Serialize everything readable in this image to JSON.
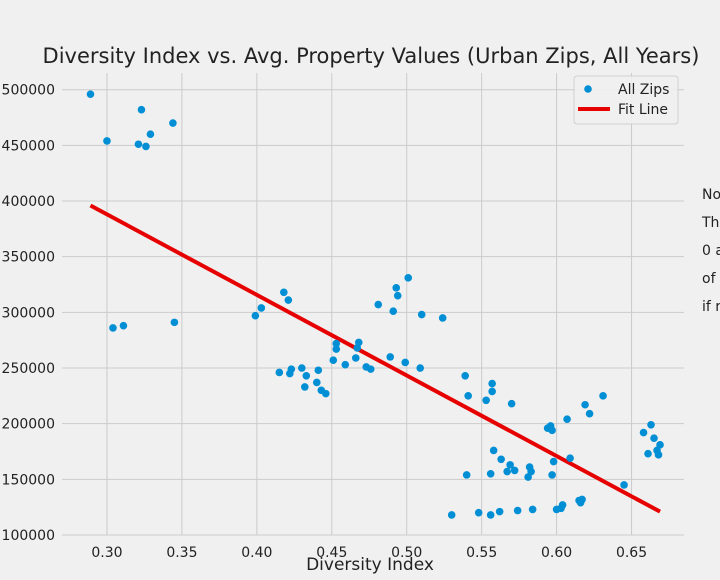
{
  "chart_data": {
    "type": "scatter",
    "title": "Diversity Index vs. Avg. Property Values (Urban Zips, All Years)",
    "xlabel": "Diversity Index",
    "ylabel": "",
    "xlim": [
      0.27,
      0.685
    ],
    "ylim": [
      100000,
      515000
    ],
    "xticks": [
      0.3,
      0.35,
      0.4,
      0.45,
      0.5,
      0.55,
      0.6,
      0.65
    ],
    "xtick_labels": [
      "0.30",
      "0.35",
      "0.40",
      "0.45",
      "0.50",
      "0.55",
      "0.60",
      "0.65"
    ],
    "yticks": [
      100000,
      150000,
      200000,
      250000,
      300000,
      350000,
      400000,
      450000,
      500000
    ],
    "ytick_labels": [
      "100000",
      "150000",
      "200000",
      "250000",
      "300000",
      "350000",
      "400000",
      "450000",
      "500000"
    ],
    "grid": true,
    "legend": {
      "position": "top-right",
      "entries": [
        "All Zips",
        "Fit Line"
      ]
    },
    "series": [
      {
        "name": "All Zips",
        "kind": "scatter",
        "color": "#008fd5",
        "points": [
          [
            0.289,
            496000
          ],
          [
            0.3,
            454000
          ],
          [
            0.304,
            286000
          ],
          [
            0.311,
            288000
          ],
          [
            0.321,
            451000
          ],
          [
            0.323,
            482000
          ],
          [
            0.326,
            449000
          ],
          [
            0.329,
            460000
          ],
          [
            0.344,
            470000
          ],
          [
            0.345,
            291000
          ],
          [
            0.399,
            297000
          ],
          [
            0.403,
            304000
          ],
          [
            0.415,
            246000
          ],
          [
            0.418,
            318000
          ],
          [
            0.421,
            311000
          ],
          [
            0.422,
            245000
          ],
          [
            0.423,
            249000
          ],
          [
            0.43,
            250000
          ],
          [
            0.432,
            233000
          ],
          [
            0.433,
            243000
          ],
          [
            0.44,
            237000
          ],
          [
            0.441,
            248000
          ],
          [
            0.443,
            230000
          ],
          [
            0.446,
            227000
          ],
          [
            0.451,
            257000
          ],
          [
            0.453,
            267000
          ],
          [
            0.453,
            272000
          ],
          [
            0.459,
            253000
          ],
          [
            0.466,
            259000
          ],
          [
            0.467,
            268000
          ],
          [
            0.468,
            273000
          ],
          [
            0.473,
            251000
          ],
          [
            0.476,
            249000
          ],
          [
            0.481,
            307000
          ],
          [
            0.489,
            260000
          ],
          [
            0.491,
            301000
          ],
          [
            0.493,
            322000
          ],
          [
            0.494,
            315000
          ],
          [
            0.499,
            255000
          ],
          [
            0.501,
            331000
          ],
          [
            0.509,
            250000
          ],
          [
            0.51,
            298000
          ],
          [
            0.524,
            295000
          ],
          [
            0.53,
            118000
          ],
          [
            0.539,
            243000
          ],
          [
            0.54,
            154000
          ],
          [
            0.541,
            225000
          ],
          [
            0.548,
            120000
          ],
          [
            0.553,
            221000
          ],
          [
            0.556,
            118000
          ],
          [
            0.556,
            155000
          ],
          [
            0.557,
            236000
          ],
          [
            0.557,
            229000
          ],
          [
            0.558,
            176000
          ],
          [
            0.562,
            121000
          ],
          [
            0.563,
            168000
          ],
          [
            0.567,
            157000
          ],
          [
            0.569,
            163000
          ],
          [
            0.57,
            218000
          ],
          [
            0.572,
            158000
          ],
          [
            0.574,
            122000
          ],
          [
            0.581,
            152000
          ],
          [
            0.582,
            161000
          ],
          [
            0.583,
            157000
          ],
          [
            0.584,
            123000
          ],
          [
            0.594,
            196000
          ],
          [
            0.596,
            198000
          ],
          [
            0.597,
            154000
          ],
          [
            0.597,
            194000
          ],
          [
            0.598,
            166000
          ],
          [
            0.6,
            123000
          ],
          [
            0.603,
            124000
          ],
          [
            0.604,
            127000
          ],
          [
            0.607,
            204000
          ],
          [
            0.609,
            169000
          ],
          [
            0.615,
            131000
          ],
          [
            0.616,
            129000
          ],
          [
            0.617,
            132000
          ],
          [
            0.619,
            217000
          ],
          [
            0.622,
            209000
          ],
          [
            0.631,
            225000
          ],
          [
            0.645,
            145000
          ],
          [
            0.658,
            192000
          ],
          [
            0.661,
            173000
          ],
          [
            0.663,
            199000
          ],
          [
            0.665,
            187000
          ],
          [
            0.667,
            176000
          ],
          [
            0.668,
            172000
          ],
          [
            0.669,
            181000
          ]
        ]
      },
      {
        "name": "Fit Line",
        "kind": "line",
        "color": "#e60000",
        "points": [
          [
            0.289,
            396000
          ],
          [
            0.669,
            121000
          ]
        ]
      }
    ],
    "side_note_lines": [
      "No",
      "Th",
      "0 a",
      "of",
      "if r"
    ]
  }
}
